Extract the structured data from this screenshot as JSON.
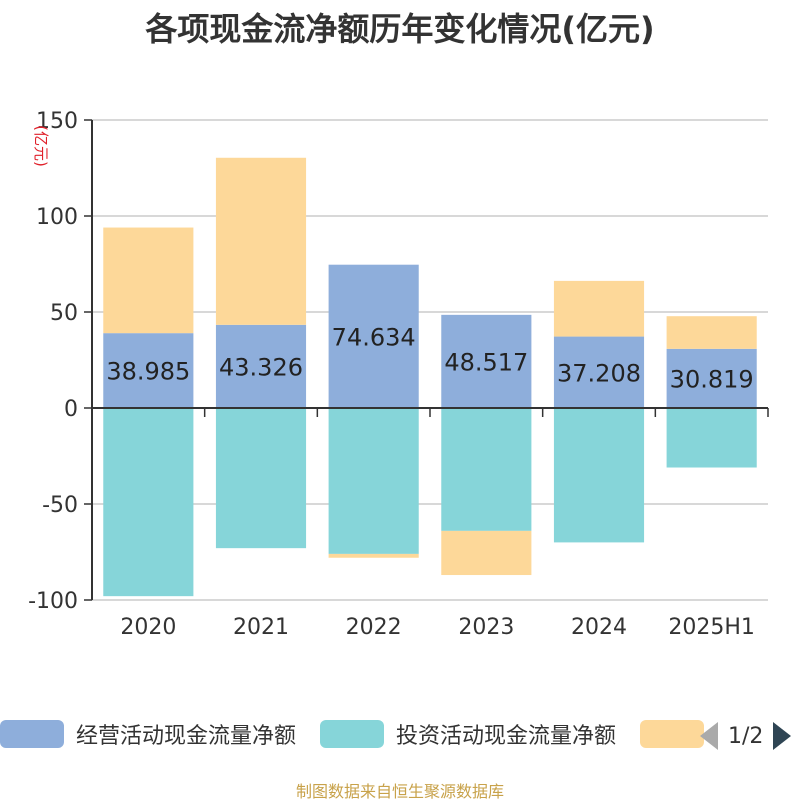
{
  "title": "各项现金流净额历年变化情况(亿元)",
  "source": "制图数据来自恒生聚源数据库",
  "legend": {
    "page": "1/2"
  },
  "colors": {
    "operating": "#8eaedb",
    "investing": "#86d5d9",
    "financing": "#fdd899"
  },
  "chart_data": {
    "type": "bar",
    "stacked": true,
    "categories": [
      "2020",
      "2021",
      "2022",
      "2023",
      "2024",
      "2025H1"
    ],
    "series": [
      {
        "name": "经营活动现金流量净额",
        "values": [
          38.985,
          43.326,
          74.634,
          48.517,
          37.208,
          30.819
        ],
        "labels_shown": true
      },
      {
        "name": "投资活动现金流量净额",
        "values": [
          -98,
          -73,
          -76,
          -64,
          -70,
          -31
        ]
      },
      {
        "name": "",
        "values": [
          55,
          87,
          -2,
          -23,
          29,
          17
        ]
      }
    ],
    "ylabel": "(亿元)",
    "ylim": [
      -100,
      150
    ],
    "yticks": [
      -100,
      -50,
      0,
      50,
      100,
      150
    ],
    "grid": true,
    "legend_position": "bottom"
  }
}
